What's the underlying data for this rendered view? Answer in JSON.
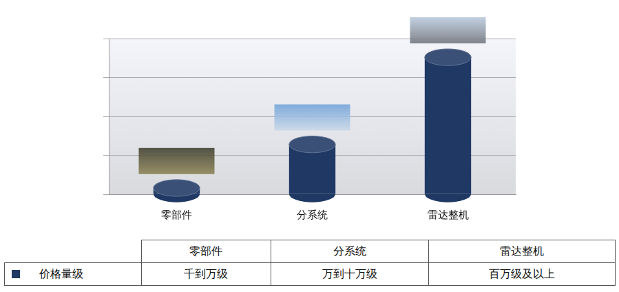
{
  "chart_data": {
    "type": "bar",
    "categories": [
      "零部件",
      "分系统",
      "雷达整机"
    ],
    "values": [
      4,
      32,
      88
    ],
    "color": "#1f3864",
    "ylim": [
      0,
      100
    ],
    "yticks": [
      0,
      25,
      50,
      75,
      100
    ],
    "grid": true,
    "tick_labels": "x"
  },
  "table": {
    "row_label": "价格量级",
    "cells": [
      "千到万级",
      "万到十万级",
      "百万级及以上"
    ]
  }
}
